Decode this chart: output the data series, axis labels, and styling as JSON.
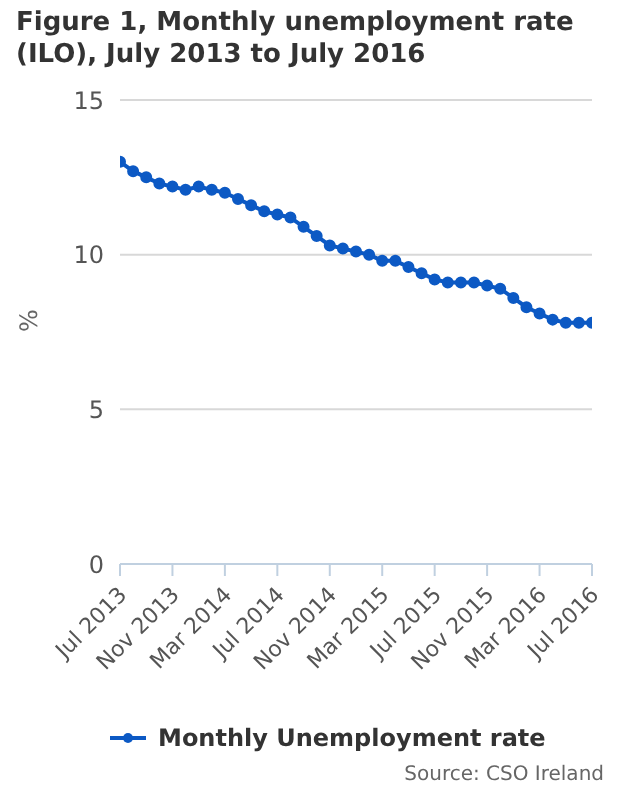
{
  "chart_data": {
    "type": "line",
    "title": "Figure 1, Monthly unemployment rate (ILO), July 2013 to July 2016",
    "ylabel": "%",
    "categories": [
      "Jul 2013",
      null,
      null,
      null,
      "Nov 2013",
      null,
      null,
      null,
      "Mar 2014",
      null,
      null,
      null,
      "Jul 2014",
      null,
      null,
      null,
      "Nov 2014",
      null,
      null,
      null,
      "Mar 2015",
      null,
      null,
      null,
      "Jul 2015",
      null,
      null,
      null,
      "Nov 2015",
      null,
      null,
      null,
      "Mar 2016",
      null,
      null,
      null,
      "Jul 2016"
    ],
    "series": [
      {
        "name": "Monthly Unemployment rate",
        "color": "#0c59c4",
        "values": [
          13.0,
          12.7,
          12.5,
          12.3,
          12.2,
          12.1,
          12.2,
          12.1,
          12.0,
          11.8,
          11.6,
          11.4,
          11.3,
          11.2,
          10.9,
          10.6,
          10.3,
          10.2,
          10.1,
          10.0,
          9.8,
          9.8,
          9.6,
          9.4,
          9.2,
          9.1,
          9.1,
          9.1,
          9.0,
          8.9,
          8.6,
          8.3,
          8.1,
          7.9,
          7.8,
          7.8,
          7.8
        ]
      }
    ],
    "ylim": [
      0,
      15
    ],
    "yticks": [
      0,
      5,
      10,
      15
    ],
    "grid": "y",
    "legend": "bottom",
    "marker": "circle",
    "line_style": "solid",
    "annotations": [
      "Source: CSO Ireland"
    ]
  }
}
